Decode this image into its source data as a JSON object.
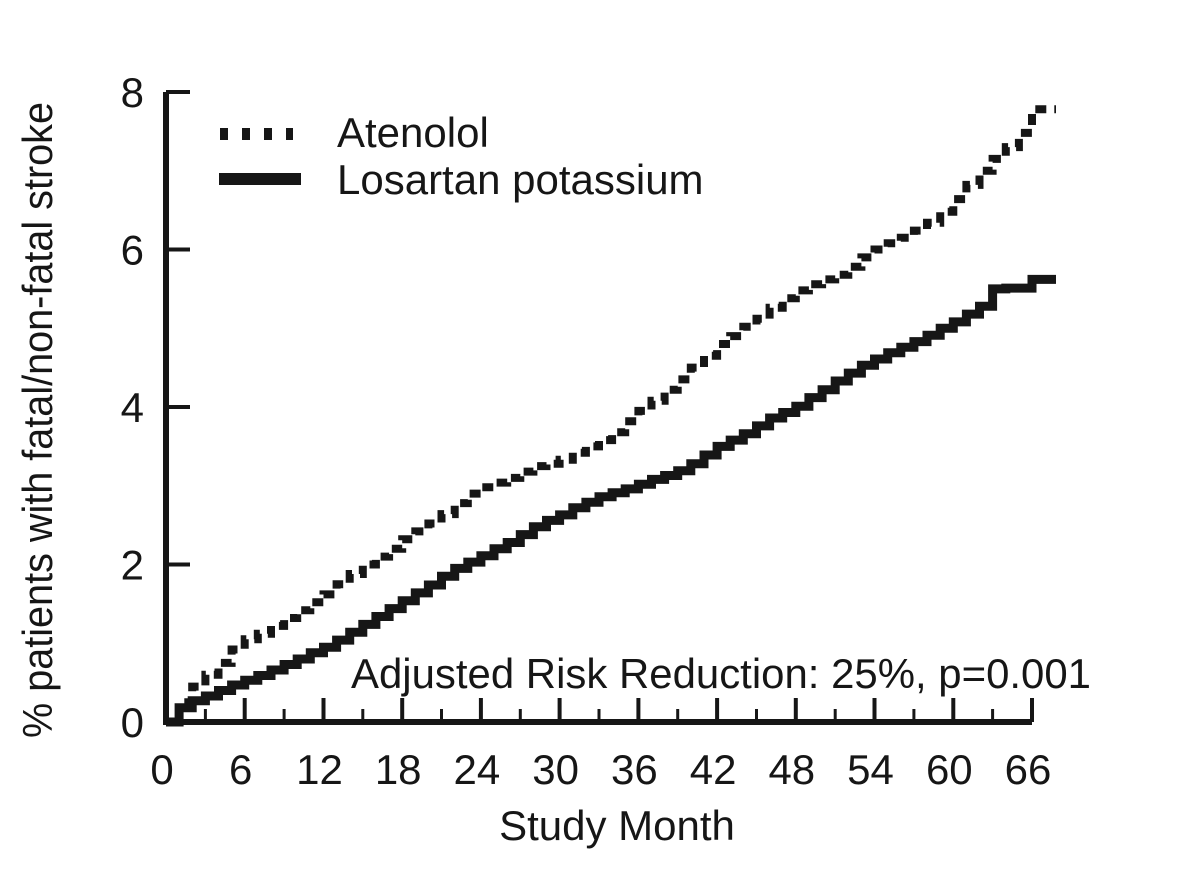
{
  "figure": {
    "background": "#ffffff",
    "ink_color": "#161616"
  },
  "chart_data": {
    "type": "line",
    "subtype": "kaplan-meier-step",
    "title": "",
    "xlabel": "Study Month",
    "ylabel": "% patients with fatal/non-fatal stroke",
    "annotation": "Adjusted Risk Reduction: 25%, p=0.001",
    "xlim": [
      0,
      66
    ],
    "ylim": [
      0,
      8
    ],
    "x_major_ticks": [
      0,
      6,
      12,
      18,
      24,
      30,
      36,
      42,
      48,
      54,
      60,
      66
    ],
    "x_minor_ticks": [
      3,
      9,
      15,
      21,
      27,
      33,
      39,
      45,
      51,
      57,
      63
    ],
    "y_major_ticks": [
      0,
      2,
      4,
      6,
      8
    ],
    "grid": false,
    "legend_position": "upper-left-inside",
    "x_months": [
      0,
      1,
      2,
      3,
      4,
      5,
      6,
      7,
      8,
      9,
      10,
      11,
      12,
      13,
      14,
      15,
      16,
      17,
      18,
      19,
      20,
      21,
      22,
      23,
      24,
      25,
      26,
      27,
      28,
      29,
      30,
      31,
      32,
      33,
      34,
      35,
      36,
      37,
      38,
      39,
      40,
      41,
      42,
      43,
      44,
      45,
      46,
      47,
      48,
      49,
      50,
      51,
      52,
      53,
      54,
      55,
      56,
      57,
      58,
      59,
      60,
      61,
      62,
      63,
      64,
      65,
      66
    ],
    "series": [
      {
        "name": "Atenolol",
        "style": "dotted",
        "values": [
          0,
          0.25,
          0.45,
          0.6,
          0.75,
          0.92,
          1.05,
          1.12,
          1.22,
          1.32,
          1.42,
          1.52,
          1.62,
          1.75,
          1.88,
          2.0,
          2.1,
          2.2,
          2.32,
          2.42,
          2.52,
          2.64,
          2.78,
          2.9,
          2.98,
          3.04,
          3.1,
          3.18,
          3.25,
          3.28,
          3.33,
          3.42,
          3.5,
          3.58,
          3.68,
          3.82,
          3.95,
          4.08,
          4.22,
          4.35,
          4.5,
          4.65,
          4.8,
          4.9,
          5.02,
          5.12,
          5.26,
          5.38,
          5.48,
          5.56,
          5.62,
          5.68,
          5.78,
          5.9,
          6.0,
          6.08,
          6.15,
          6.24,
          6.34,
          6.48,
          6.64,
          6.82,
          7.0,
          7.15,
          7.3,
          7.48,
          7.78
        ]
      },
      {
        "name": "Losartan potassium",
        "style": "solid",
        "values": [
          0,
          0.18,
          0.27,
          0.33,
          0.4,
          0.47,
          0.53,
          0.59,
          0.66,
          0.73,
          0.8,
          0.88,
          0.95,
          1.04,
          1.14,
          1.24,
          1.34,
          1.44,
          1.54,
          1.64,
          1.74,
          1.85,
          1.95,
          2.03,
          2.11,
          2.2,
          2.28,
          2.38,
          2.48,
          2.56,
          2.63,
          2.72,
          2.79,
          2.86,
          2.91,
          2.96,
          3.02,
          3.08,
          3.13,
          3.19,
          3.28,
          3.39,
          3.5,
          3.58,
          3.66,
          3.76,
          3.86,
          3.93,
          4.01,
          4.12,
          4.22,
          4.33,
          4.43,
          4.53,
          4.61,
          4.69,
          4.76,
          4.83,
          4.91,
          5.0,
          5.08,
          5.18,
          5.28,
          5.5,
          5.51,
          5.51,
          5.62
        ]
      }
    ]
  }
}
